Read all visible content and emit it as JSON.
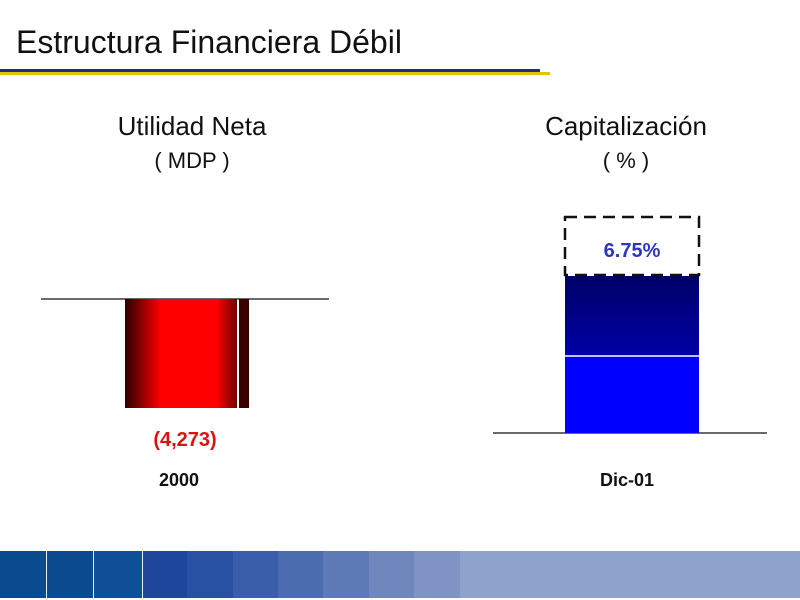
{
  "slide": {
    "title": "Estructura Financiera Débil"
  },
  "theme": {
    "title_rule_blue": "#1f2e7a",
    "title_rule_gold": "#e8c200",
    "footer_colors": [
      "#0a4a8f",
      "#0d4b91",
      "#0f4f97",
      "#1d469c",
      "#2851a3",
      "#3a5ea9",
      "#4c6cb0",
      "#5d79b6",
      "#7087bd",
      "#7f94c4",
      "#8ea2cb",
      "#9bb0d2"
    ]
  },
  "chart_data": [
    {
      "type": "bar",
      "title": "Utilidad Neta",
      "subtitle": "( MDP )",
      "categories": [
        "2000"
      ],
      "values": [
        -4273
      ],
      "value_label": "(4,273)",
      "ylim": [
        -5600,
        0
      ],
      "color": "#ff0000",
      "label_color": "#dd1111"
    },
    {
      "type": "bar",
      "title": "Capitalización",
      "subtitle": "( % )",
      "categories": [
        "Dic-01"
      ],
      "values": [
        6.75
      ],
      "value_label": "6.75%",
      "legend": null,
      "stack_color_top": "#00007a",
      "stack_color_bottom": "#0000ff",
      "label_color": "#2f35b7"
    }
  ]
}
